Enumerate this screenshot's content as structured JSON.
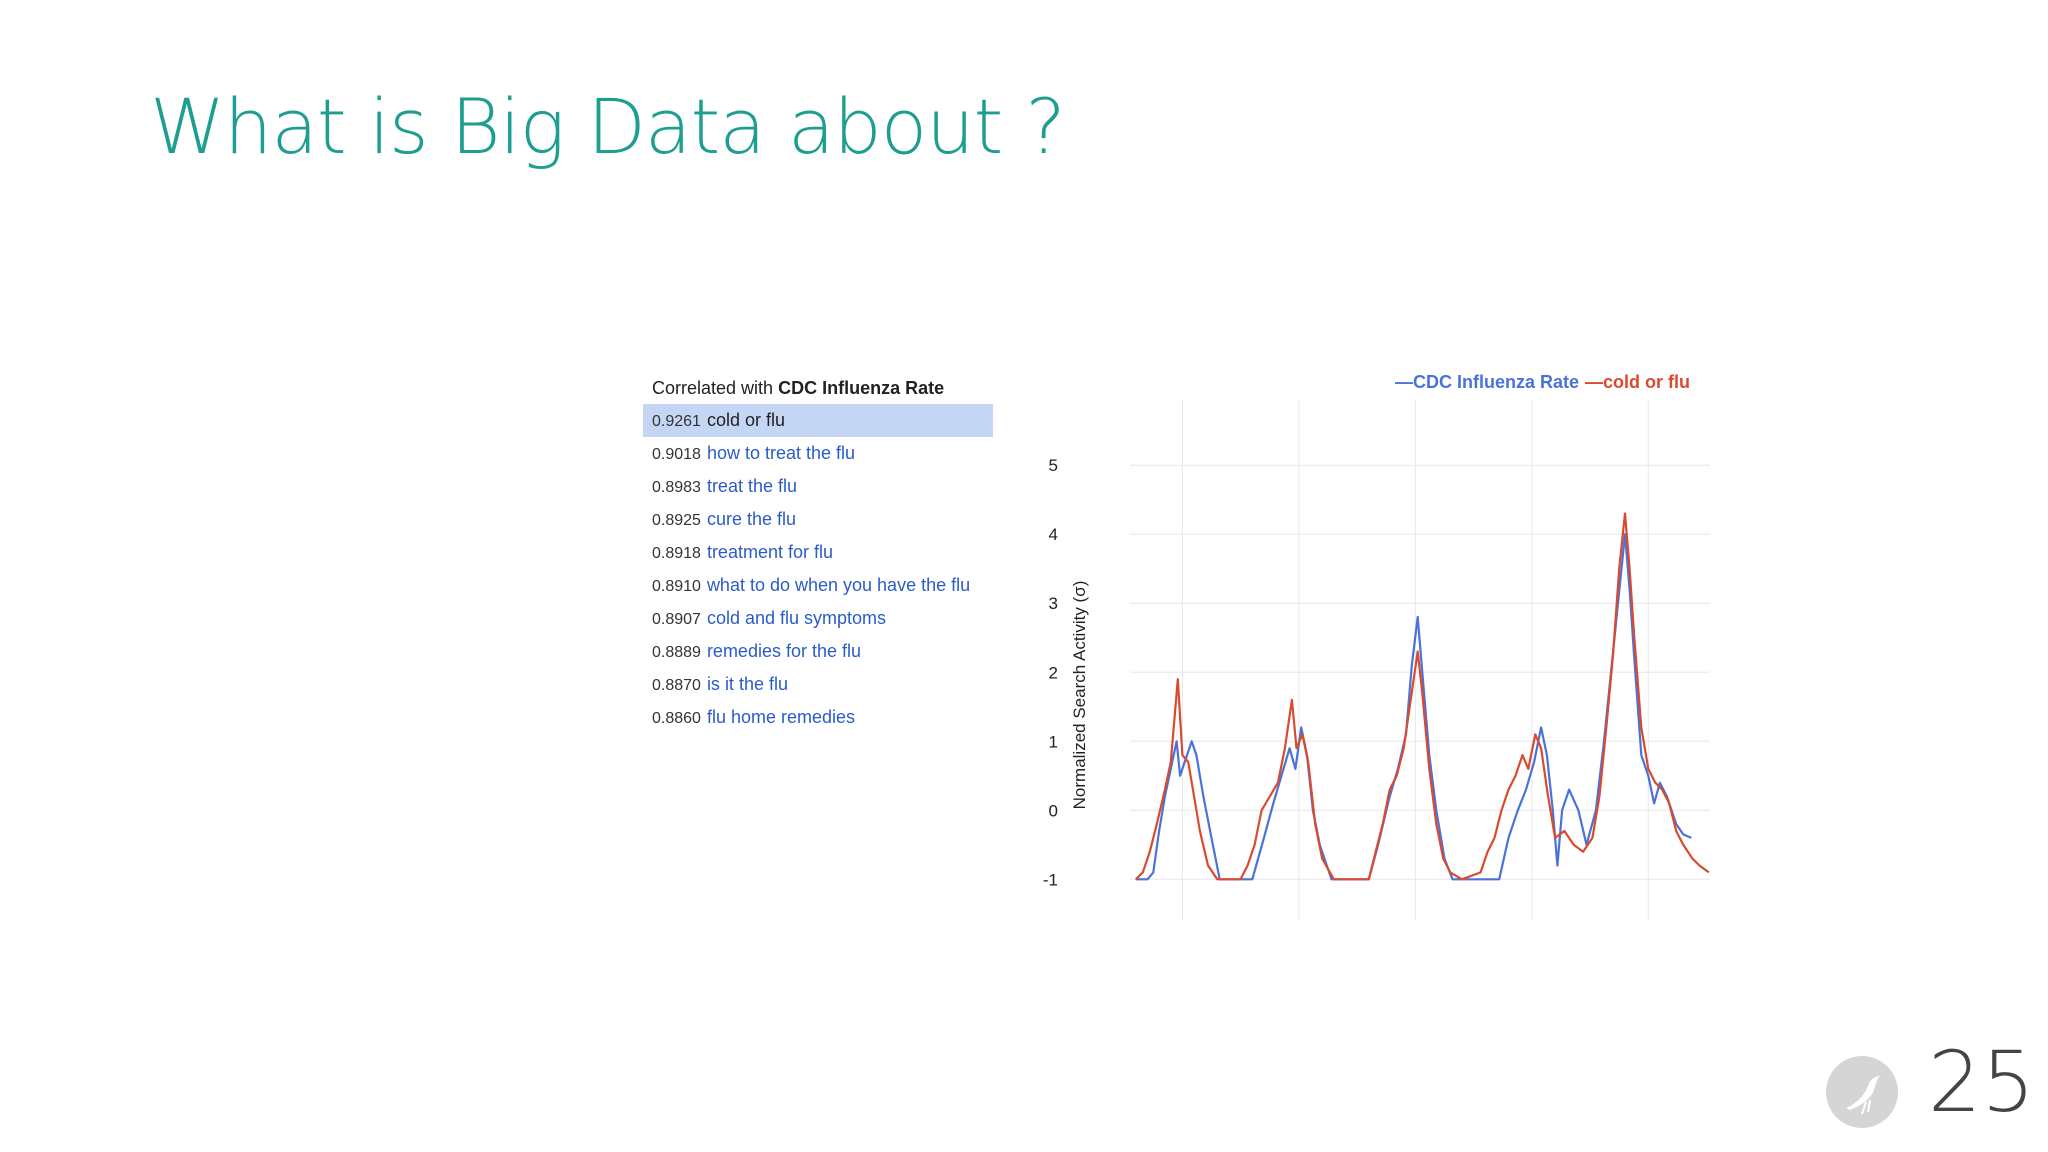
{
  "slide": {
    "title": "What is Big Data about ?",
    "page_number": "25",
    "title_color": "#1e9e8f"
  },
  "correlation_list": {
    "header_prefix": "Correlated with",
    "header_bold": "CDC Influenza Rate",
    "items": [
      {
        "score": "0.9261",
        "term": "cold or flu",
        "selected": true
      },
      {
        "score": "0.9018",
        "term": "how to treat the flu",
        "selected": false
      },
      {
        "score": "0.8983",
        "term": "treat the flu",
        "selected": false
      },
      {
        "score": "0.8925",
        "term": "cure the flu",
        "selected": false
      },
      {
        "score": "0.8918",
        "term": "treatment for flu",
        "selected": false
      },
      {
        "score": "0.8910",
        "term": "what to do when you have the flu",
        "selected": false
      },
      {
        "score": "0.8907",
        "term": "cold and flu symptoms",
        "selected": false
      },
      {
        "score": "0.8889",
        "term": "remedies for the flu",
        "selected": false
      },
      {
        "score": "0.8870",
        "term": "is it the flu",
        "selected": false
      },
      {
        "score": "0.8860",
        "term": "flu home remedies",
        "selected": false
      }
    ]
  },
  "icons": {
    "badge": "bird-icon"
  },
  "chart_data": {
    "type": "line",
    "title": "",
    "xlabel": "",
    "ylabel": "Normalized Search Activity (σ)",
    "xlim": [
      2005.55,
      2010.53
    ],
    "ylim": [
      -1.3,
      5.8
    ],
    "x_ticks": [
      2006,
      2007,
      2008,
      2009,
      2010
    ],
    "y_ticks": [
      -1,
      0,
      1,
      2,
      3,
      4,
      5
    ],
    "grid": true,
    "legend_position": "top-right",
    "series": [
      {
        "name": "CDC Influenza Rate",
        "legend_label": "—CDC Influenza Rate",
        "color": "#4a72d9",
        "points": [
          [
            2005.6,
            -1.0
          ],
          [
            2005.7,
            -1.0
          ],
          [
            2005.75,
            -0.9
          ],
          [
            2005.8,
            -0.3
          ],
          [
            2005.85,
            0.2
          ],
          [
            2005.9,
            0.6
          ],
          [
            2005.95,
            1.0
          ],
          [
            2005.98,
            0.5
          ],
          [
            2006.02,
            0.7
          ],
          [
            2006.08,
            1.0
          ],
          [
            2006.12,
            0.8
          ],
          [
            2006.18,
            0.2
          ],
          [
            2006.25,
            -0.4
          ],
          [
            2006.32,
            -1.0
          ],
          [
            2006.6,
            -1.0
          ],
          [
            2006.7,
            -0.4
          ],
          [
            2006.78,
            0.1
          ],
          [
            2006.85,
            0.5
          ],
          [
            2006.92,
            0.9
          ],
          [
            2006.97,
            0.6
          ],
          [
            2007.02,
            1.2
          ],
          [
            2007.07,
            0.8
          ],
          [
            2007.12,
            0.0
          ],
          [
            2007.18,
            -0.5
          ],
          [
            2007.28,
            -1.0
          ],
          [
            2007.6,
            -1.0
          ],
          [
            2007.68,
            -0.5
          ],
          [
            2007.78,
            0.2
          ],
          [
            2007.85,
            0.6
          ],
          [
            2007.92,
            1.1
          ],
          [
            2007.97,
            2.1
          ],
          [
            2008.02,
            2.8
          ],
          [
            2008.06,
            2.0
          ],
          [
            2008.12,
            0.8
          ],
          [
            2008.18,
            0.0
          ],
          [
            2008.25,
            -0.7
          ],
          [
            2008.32,
            -1.0
          ],
          [
            2008.72,
            -1.0
          ],
          [
            2008.8,
            -0.4
          ],
          [
            2008.88,
            0.0
          ],
          [
            2008.95,
            0.3
          ],
          [
            2009.02,
            0.7
          ],
          [
            2009.08,
            1.2
          ],
          [
            2009.13,
            0.8
          ],
          [
            2009.18,
            0.0
          ],
          [
            2009.22,
            -0.8
          ],
          [
            2009.26,
            0.0
          ],
          [
            2009.32,
            0.3
          ],
          [
            2009.4,
            0.0
          ],
          [
            2009.47,
            -0.5
          ],
          [
            2009.55,
            0.0
          ],
          [
            2009.62,
            1.0
          ],
          [
            2009.68,
            2.0
          ],
          [
            2009.74,
            3.0
          ],
          [
            2009.8,
            4.0
          ],
          [
            2009.84,
            3.2
          ],
          [
            2009.88,
            2.2
          ],
          [
            2009.94,
            0.8
          ],
          [
            2010.0,
            0.5
          ],
          [
            2010.05,
            0.1
          ],
          [
            2010.1,
            0.4
          ],
          [
            2010.16,
            0.2
          ],
          [
            2010.24,
            -0.2
          ],
          [
            2010.3,
            -0.35
          ],
          [
            2010.37,
            -0.4
          ]
        ]
      },
      {
        "name": "cold or flu",
        "legend_label": "—cold or flu",
        "color": "#d94a2e",
        "points": [
          [
            2005.6,
            -1.0
          ],
          [
            2005.66,
            -0.9
          ],
          [
            2005.72,
            -0.6
          ],
          [
            2005.78,
            -0.2
          ],
          [
            2005.85,
            0.3
          ],
          [
            2005.9,
            0.7
          ],
          [
            2005.96,
            1.9
          ],
          [
            2006.0,
            0.8
          ],
          [
            2006.05,
            0.7
          ],
          [
            2006.1,
            0.2
          ],
          [
            2006.15,
            -0.3
          ],
          [
            2006.22,
            -0.8
          ],
          [
            2006.3,
            -1.0
          ],
          [
            2006.5,
            -1.0
          ],
          [
            2006.56,
            -0.8
          ],
          [
            2006.62,
            -0.5
          ],
          [
            2006.68,
            0.0
          ],
          [
            2006.75,
            0.2
          ],
          [
            2006.82,
            0.4
          ],
          [
            2006.88,
            0.9
          ],
          [
            2006.94,
            1.6
          ],
          [
            2006.98,
            0.9
          ],
          [
            2007.03,
            1.1
          ],
          [
            2007.08,
            0.7
          ],
          [
            2007.14,
            -0.2
          ],
          [
            2007.2,
            -0.7
          ],
          [
            2007.3,
            -1.0
          ],
          [
            2007.6,
            -1.0
          ],
          [
            2007.66,
            -0.6
          ],
          [
            2007.72,
            -0.2
          ],
          [
            2007.78,
            0.3
          ],
          [
            2007.84,
            0.5
          ],
          [
            2007.9,
            0.9
          ],
          [
            2007.96,
            1.6
          ],
          [
            2008.02,
            2.3
          ],
          [
            2008.06,
            1.7
          ],
          [
            2008.12,
            0.6
          ],
          [
            2008.18,
            -0.2
          ],
          [
            2008.24,
            -0.7
          ],
          [
            2008.3,
            -0.9
          ],
          [
            2008.4,
            -1.0
          ],
          [
            2008.56,
            -0.9
          ],
          [
            2008.62,
            -0.6
          ],
          [
            2008.68,
            -0.4
          ],
          [
            2008.74,
            0.0
          ],
          [
            2008.8,
            0.3
          ],
          [
            2008.86,
            0.5
          ],
          [
            2008.92,
            0.8
          ],
          [
            2008.97,
            0.6
          ],
          [
            2009.03,
            1.1
          ],
          [
            2009.08,
            0.9
          ],
          [
            2009.14,
            0.2
          ],
          [
            2009.2,
            -0.4
          ],
          [
            2009.28,
            -0.3
          ],
          [
            2009.36,
            -0.5
          ],
          [
            2009.44,
            -0.6
          ],
          [
            2009.52,
            -0.4
          ],
          [
            2009.58,
            0.2
          ],
          [
            2009.64,
            1.2
          ],
          [
            2009.7,
            2.3
          ],
          [
            2009.75,
            3.5
          ],
          [
            2009.8,
            4.3
          ],
          [
            2009.84,
            3.5
          ],
          [
            2009.88,
            2.5
          ],
          [
            2009.94,
            1.2
          ],
          [
            2010.0,
            0.6
          ],
          [
            2010.06,
            0.4
          ],
          [
            2010.12,
            0.3
          ],
          [
            2010.18,
            0.1
          ],
          [
            2010.24,
            -0.3
          ],
          [
            2010.3,
            -0.5
          ],
          [
            2010.38,
            -0.7
          ],
          [
            2010.44,
            -0.8
          ],
          [
            2010.52,
            -0.9
          ]
        ]
      }
    ]
  }
}
